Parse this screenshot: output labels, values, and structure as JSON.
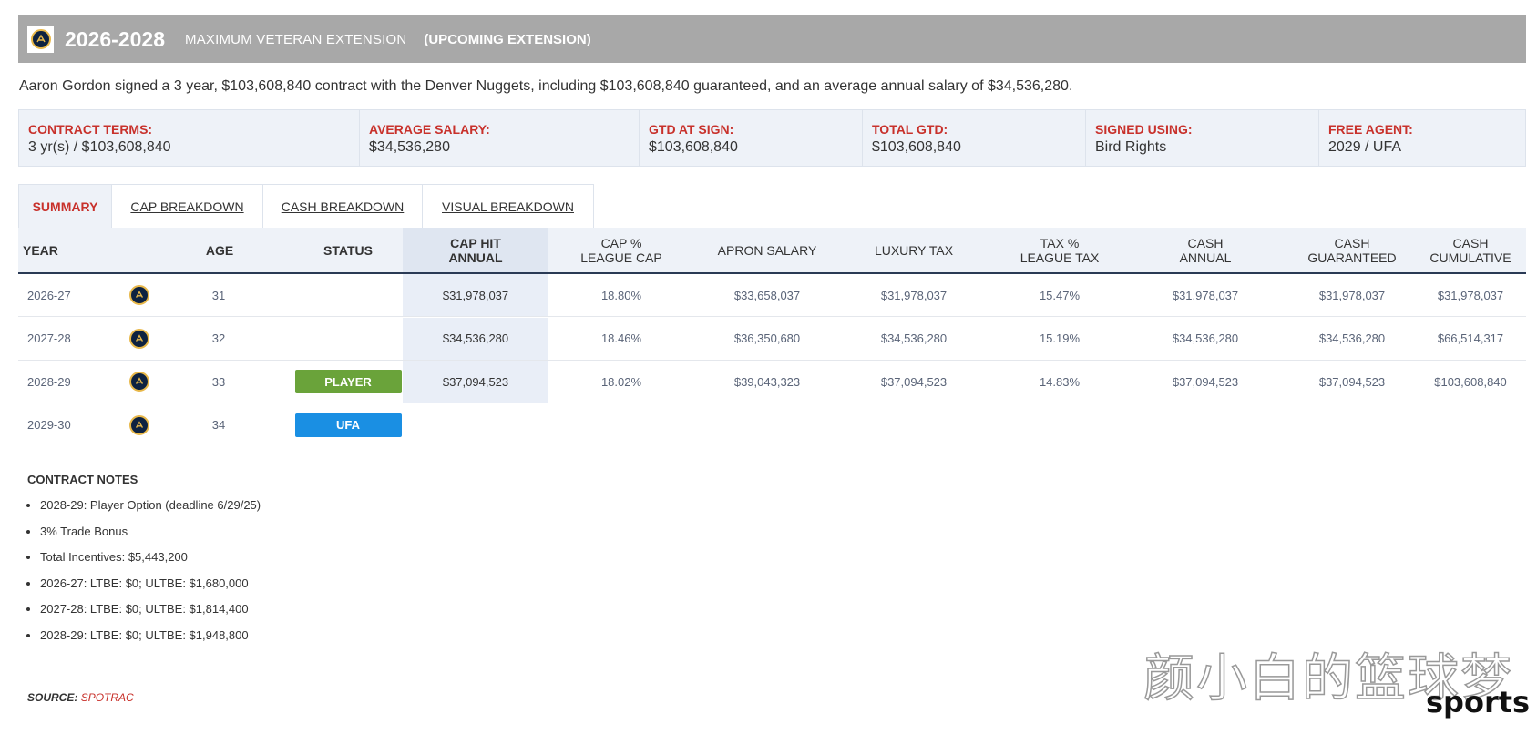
{
  "header": {
    "years": "2026-2028",
    "type": "MAXIMUM VETERAN EXTENSION",
    "status": "(UPCOMING EXTENSION)"
  },
  "summary_text": "Aaron Gordon signed a 3 year, $103,608,840 contract with the Denver Nuggets, including $103,608,840 guaranteed, and an average annual salary of $34,536,280.",
  "terms": [
    {
      "label": "CONTRACT TERMS:",
      "value": "3 yr(s) / $103,608,840"
    },
    {
      "label": "AVERAGE SALARY:",
      "value": "$34,536,280"
    },
    {
      "label": "GTD AT SIGN:",
      "value": "$103,608,840"
    },
    {
      "label": "TOTAL GTD:",
      "value": "$103,608,840"
    },
    {
      "label": "SIGNED USING:",
      "value": "Bird Rights"
    },
    {
      "label": "FREE AGENT:",
      "value": "2029 / UFA"
    }
  ],
  "tabs": [
    "SUMMARY",
    "CAP BREAKDOWN",
    "CASH BREAKDOWN",
    "VISUAL BREAKDOWN"
  ],
  "columns": {
    "year": "YEAR",
    "age": "AGE",
    "status": "STATUS",
    "cap_hit_1": "CAP HIT",
    "cap_hit_2": "ANNUAL",
    "cap_pct_1": "CAP %",
    "cap_pct_2": "LEAGUE CAP",
    "apron": "APRON SALARY",
    "luxury": "LUXURY TAX",
    "tax_pct_1": "TAX %",
    "tax_pct_2": "LEAGUE TAX",
    "cash_annual_1": "CASH",
    "cash_annual_2": "ANNUAL",
    "cash_gtd_1": "CASH",
    "cash_gtd_2": "GUARANTEED",
    "cash_cum_1": "CASH",
    "cash_cum_2": "CUMULATIVE"
  },
  "rows": [
    {
      "year": "2026-27",
      "age": "31",
      "status": "",
      "cap_hit": "$31,978,037",
      "cap_pct": "18.80%",
      "apron": "$33,658,037",
      "luxury": "$31,978,037",
      "tax_pct": "15.47%",
      "cash_annual": "$31,978,037",
      "cash_gtd": "$31,978,037",
      "cash_cum": "$31,978,037"
    },
    {
      "year": "2027-28",
      "age": "32",
      "status": "",
      "cap_hit": "$34,536,280",
      "cap_pct": "18.46%",
      "apron": "$36,350,680",
      "luxury": "$34,536,280",
      "tax_pct": "15.19%",
      "cash_annual": "$34,536,280",
      "cash_gtd": "$34,536,280",
      "cash_cum": "$66,514,317"
    },
    {
      "year": "2028-29",
      "age": "33",
      "status": "PLAYER",
      "cap_hit": "$37,094,523",
      "cap_pct": "18.02%",
      "apron": "$39,043,323",
      "luxury": "$37,094,523",
      "tax_pct": "14.83%",
      "cash_annual": "$37,094,523",
      "cash_gtd": "$37,094,523",
      "cash_cum": "$103,608,840"
    },
    {
      "year": "2029-30",
      "age": "34",
      "status": "UFA",
      "cap_hit": "",
      "cap_pct": "",
      "apron": "",
      "luxury": "",
      "tax_pct": "",
      "cash_annual": "",
      "cash_gtd": "",
      "cash_cum": ""
    }
  ],
  "status_colors": {
    "PLAYER": "#6aa33a",
    "UFA": "#1a8fe3"
  },
  "notes_title": "CONTRACT NOTES",
  "notes": [
    "2028-29: Player Option (deadline 6/29/25)",
    "3% Trade Bonus",
    "Total Incentives: $5,443,200",
    "2026-27: LTBE: $0; ULTBE: $1,680,000",
    "2027-28: LTBE: $0; ULTBE: $1,814,400",
    "2028-29: LTBE: $0; ULTBE: $1,948,800"
  ],
  "source_label": "SOURCE:",
  "source_value": "SPOTRAC",
  "watermark": "颜小白的篮球梦",
  "watermark_sub": "sports"
}
